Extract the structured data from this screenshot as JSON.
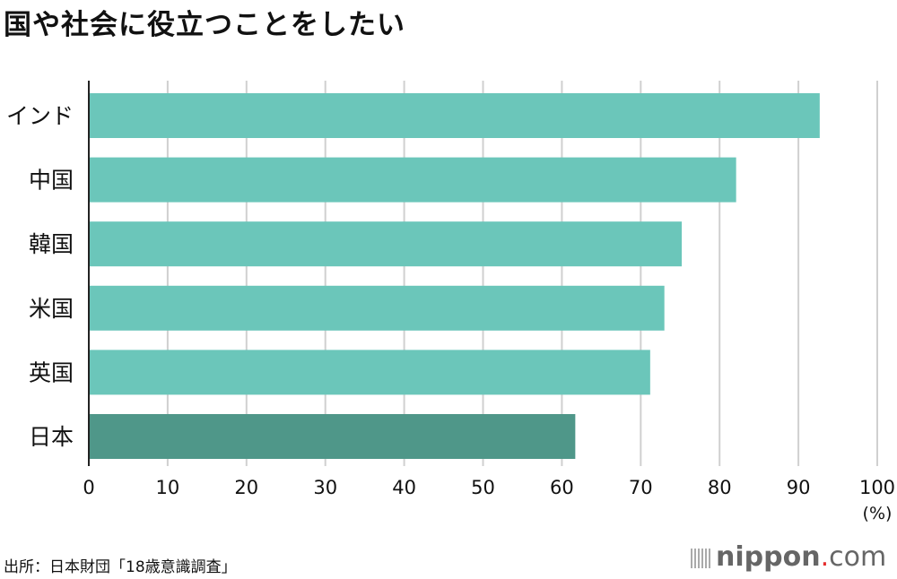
{
  "chart_data": {
    "type": "bar",
    "orientation": "horizontal",
    "title": "国や社会に役立つことをしたい",
    "categories": [
      "インド",
      "中国",
      "韓国",
      "米国",
      "英国",
      "日本"
    ],
    "values": [
      92.7,
      82.1,
      75.2,
      73.0,
      71.2,
      61.7
    ],
    "xlim": [
      0,
      100
    ],
    "xticks": [
      "0",
      "10",
      "20",
      "30",
      "40",
      "50",
      "60",
      "70",
      "80",
      "90",
      "100"
    ],
    "xunit": "(%)",
    "grid": true,
    "colors": {
      "default": "#6bc6ba",
      "highlight": "#4f9789",
      "grid": "#d0d0d0",
      "axis": "#222222"
    },
    "highlight_category": "日本"
  },
  "source": "出所：日本財団「18歳意識調査」",
  "logo": {
    "name": "nippon",
    "dot": ".",
    "suffix": "com"
  }
}
